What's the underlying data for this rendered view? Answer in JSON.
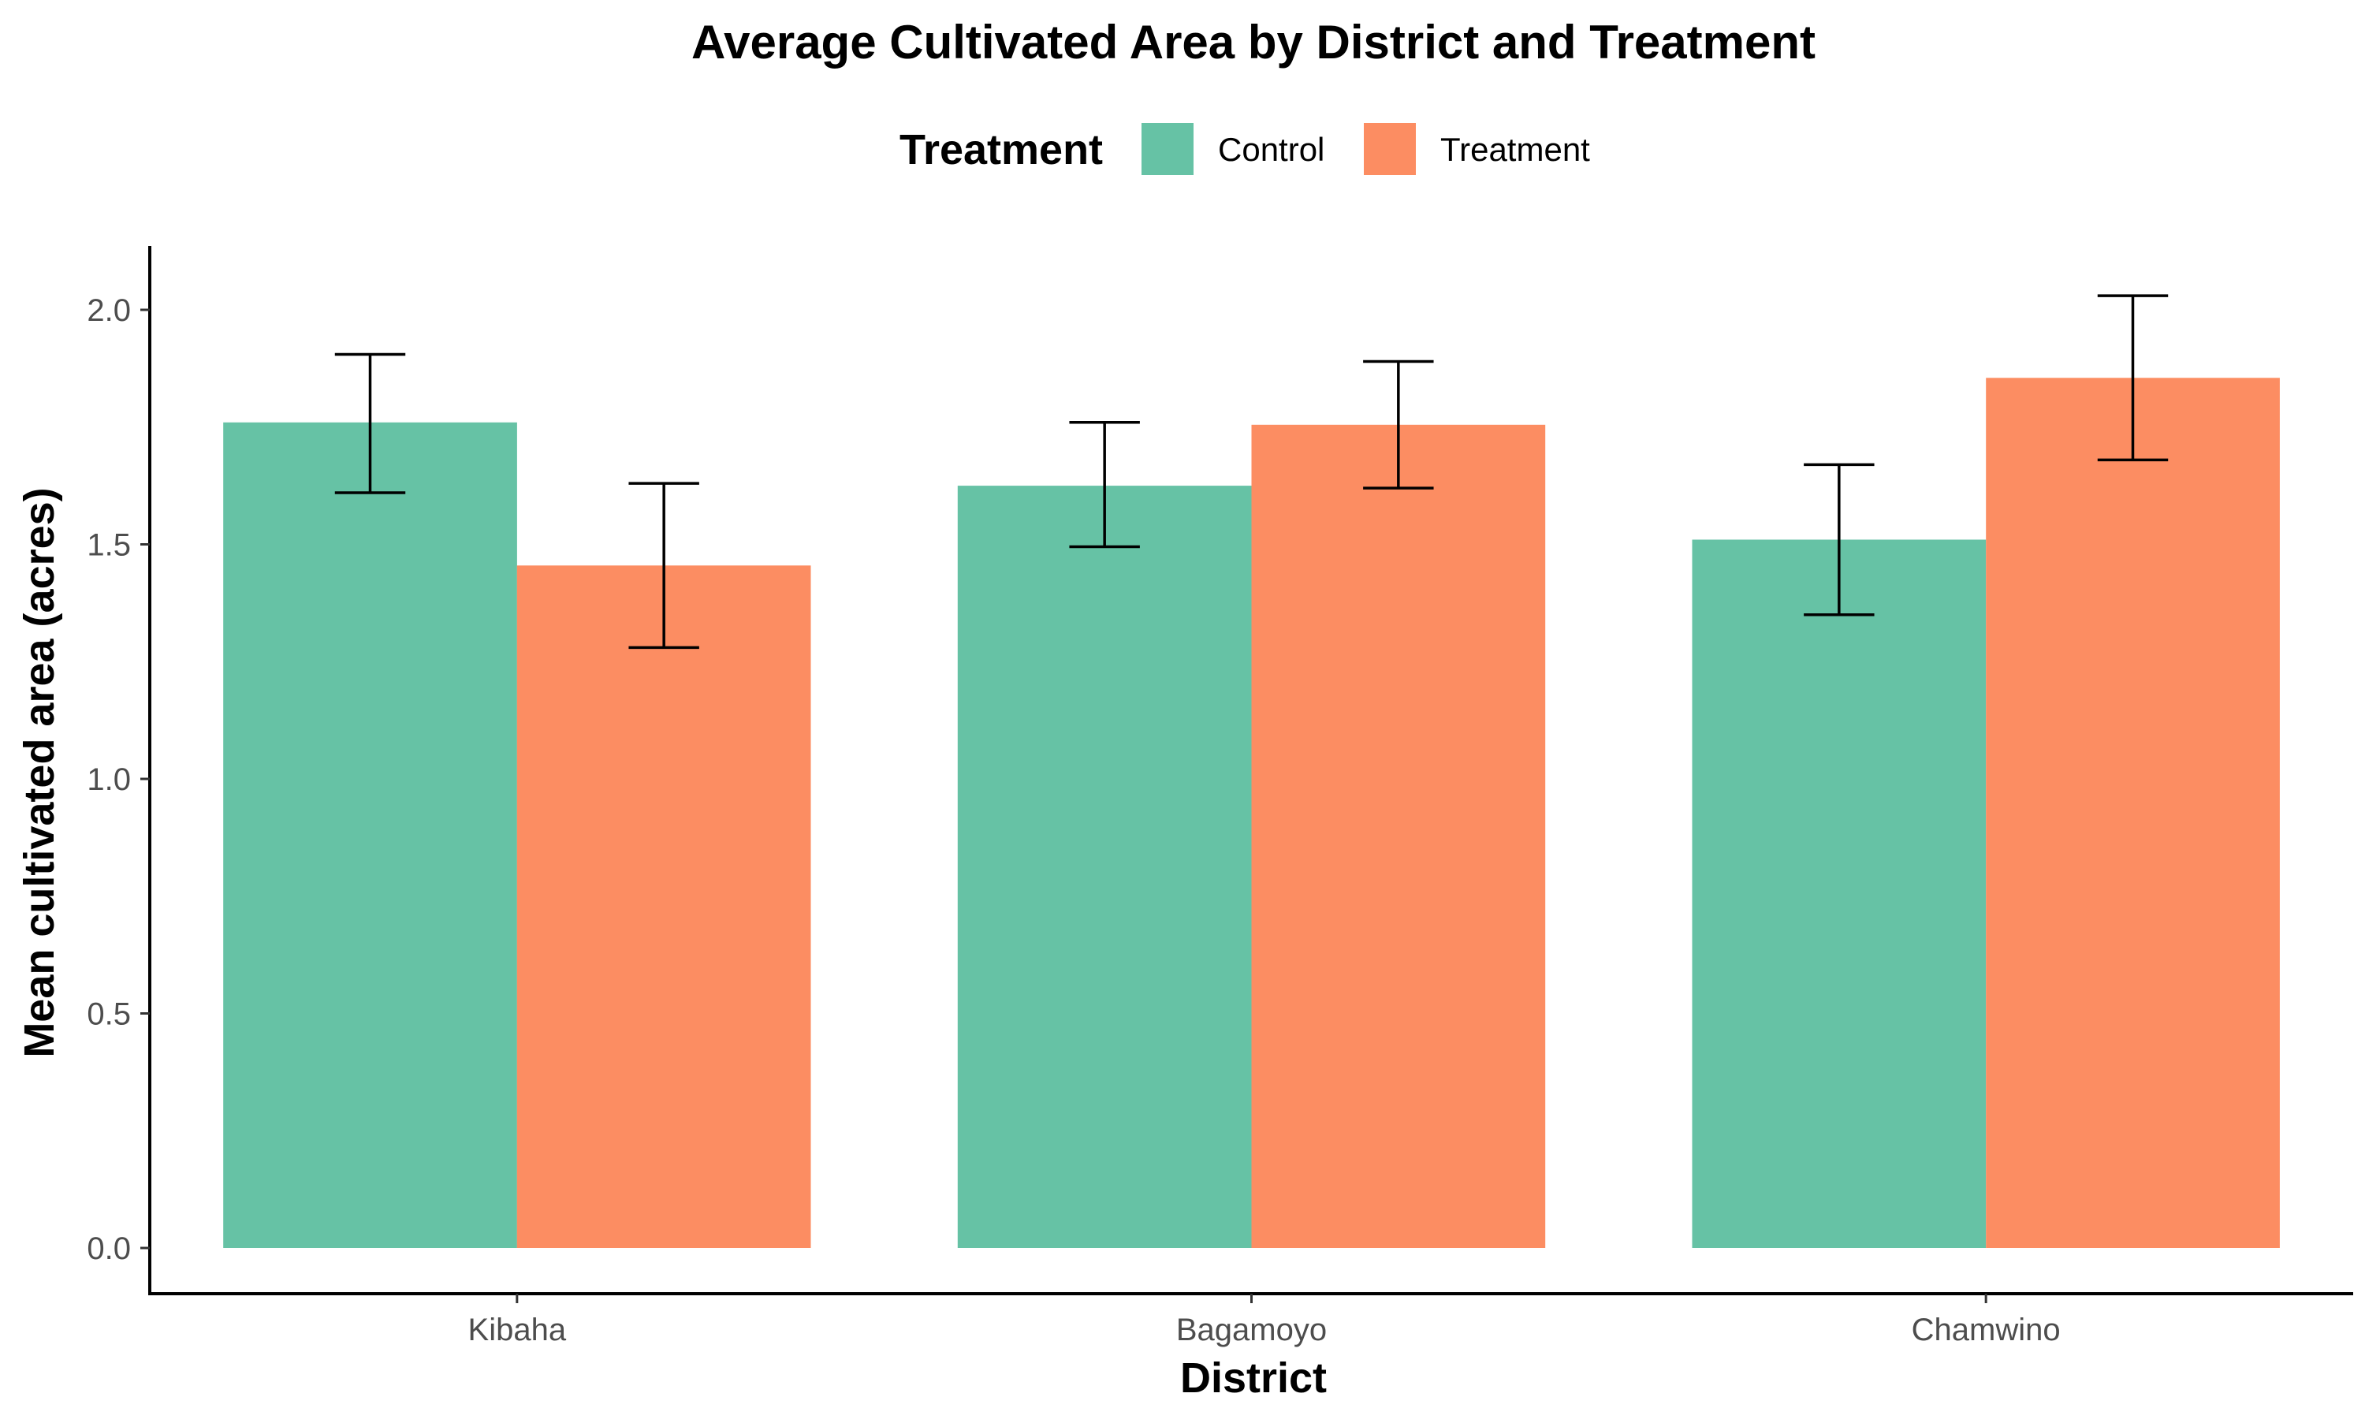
{
  "chart_data": {
    "type": "bar",
    "title": "Average Cultivated Area by District and Treatment",
    "xlabel": "District",
    "ylabel": "Mean cultivated area (acres)",
    "categories": [
      "Kibaha",
      "Bagamoyo",
      "Chamwino"
    ],
    "ylim": [
      -0.1,
      2.13
    ],
    "yticks": [
      0.0,
      0.5,
      1.0,
      1.5,
      2.0
    ],
    "ytick_labels": [
      "0.0",
      "0.5",
      "1.0",
      "1.5",
      "2.0"
    ],
    "grid": false,
    "legend": {
      "title": "Treatment",
      "position": "top"
    },
    "series": [
      {
        "name": "Control",
        "color": "#66c2a5",
        "values": [
          1.76,
          1.625,
          1.51
        ],
        "error_low": [
          1.61,
          1.495,
          1.35
        ],
        "error_high": [
          1.905,
          1.76,
          1.67
        ]
      },
      {
        "name": "Treatment",
        "color": "#fc8d62",
        "values": [
          1.455,
          1.755,
          1.855
        ],
        "error_low": [
          1.28,
          1.62,
          1.68
        ],
        "error_high": [
          1.63,
          1.89,
          2.03
        ]
      }
    ]
  }
}
